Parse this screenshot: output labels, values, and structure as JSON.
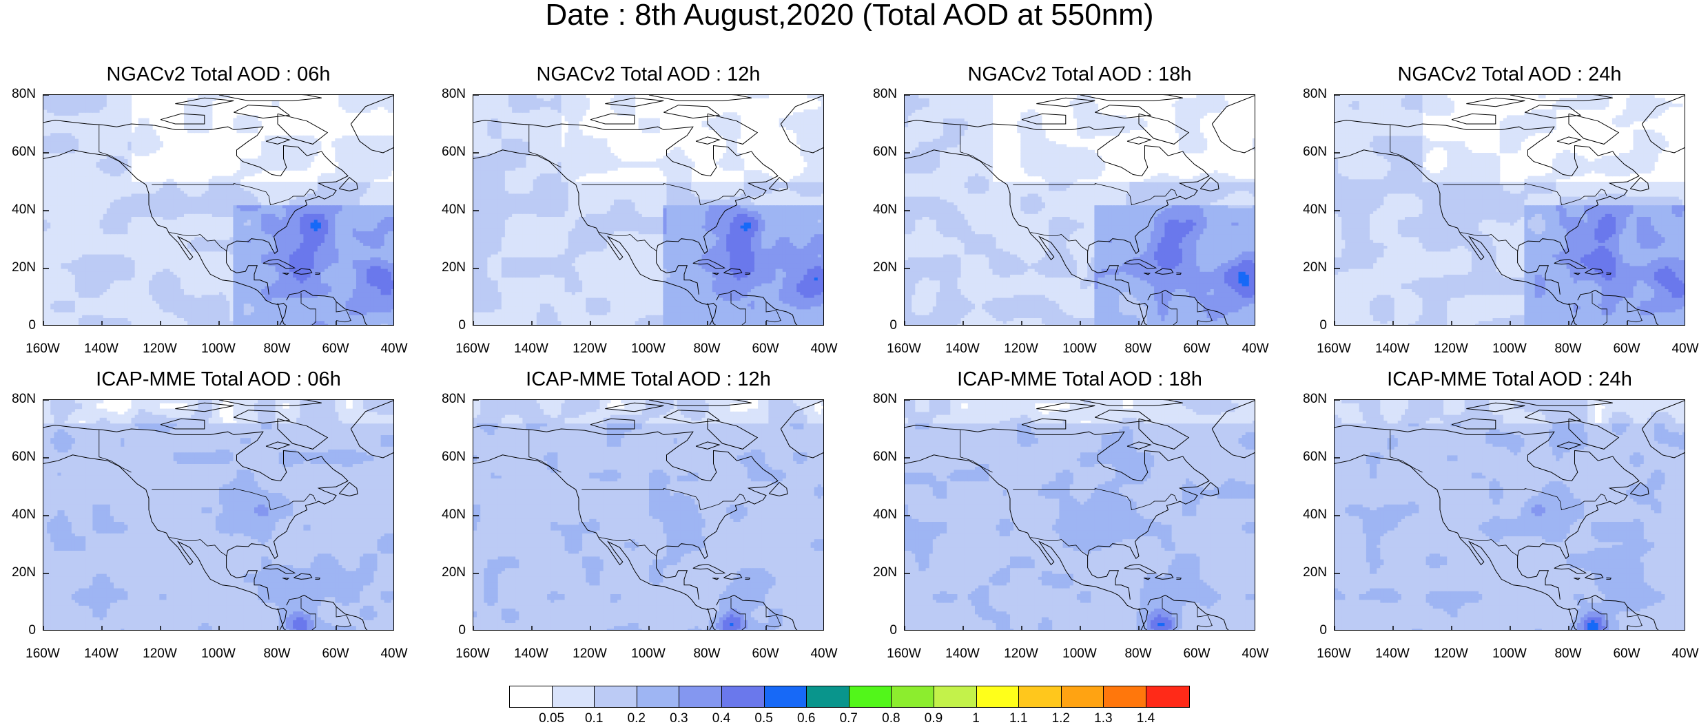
{
  "title": "Date : 8th August,2020 (Total AOD at 550nm)",
  "panels": [
    {
      "title": "NGACv2 Total AOD : 06h",
      "model": "NGACv2"
    },
    {
      "title": "NGACv2 Total AOD : 12h",
      "model": "NGACv2"
    },
    {
      "title": "NGACv2 Total AOD : 18h",
      "model": "NGACv2"
    },
    {
      "title": "NGACv2 Total AOD : 24h",
      "model": "NGACv2"
    },
    {
      "title": "ICAP-MME Total AOD : 06h",
      "model": "ICAP-MME"
    },
    {
      "title": "ICAP-MME Total AOD : 12h",
      "model": "ICAP-MME"
    },
    {
      "title": "ICAP-MME Total AOD : 18h",
      "model": "ICAP-MME"
    },
    {
      "title": "ICAP-MME Total AOD : 24h",
      "model": "ICAP-MME"
    }
  ],
  "lat_labels": [
    "80N",
    "60N",
    "40N",
    "20N",
    "0"
  ],
  "lon_labels": [
    "160W",
    "140W",
    "120W",
    "100W",
    "80W",
    "60W",
    "40W"
  ],
  "colorbar": {
    "colors": [
      "#ffffff",
      "#d9e3fb",
      "#bccbf5",
      "#9eb5f3",
      "#8497f0",
      "#6a78ec",
      "#1769f7",
      "#09958c",
      "#52f61a",
      "#8ced2e",
      "#c3f24a",
      "#ffff1a",
      "#ffc71c",
      "#ffa312",
      "#ff770c",
      "#ff2a18"
    ],
    "labels": [
      "0.05",
      "0.1",
      "0.2",
      "0.3",
      "0.4",
      "0.5",
      "0.6",
      "0.7",
      "0.8",
      "0.9",
      "1",
      "1.1",
      "1.2",
      "1.3",
      "1.4"
    ]
  }
}
